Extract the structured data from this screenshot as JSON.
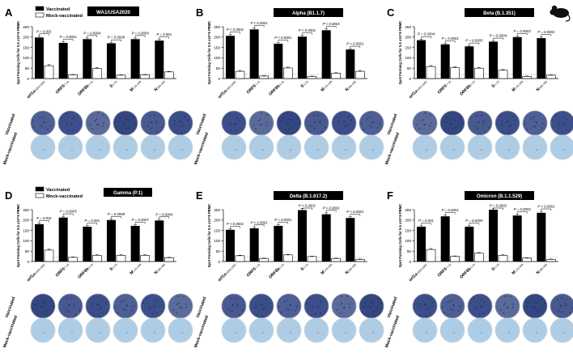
{
  "figure": {
    "legend_vaccinated": "Vaccinated",
    "legend_mock": "Mock-vaccinated",
    "row_vaccinated": "Vaccinated",
    "row_mock": "Mock-vaccinated",
    "colors": {
      "vaccinated_bar": "#000000",
      "mock_bar": "#ffffff",
      "well_dark": "#3d4f8a",
      "well_light": "#aecde4",
      "variant_box": "#000000",
      "mouse": "#111111"
    },
    "mouse_icon": "mouse-silhouette-icon"
  },
  "chart_data": [
    {
      "panel": "A",
      "type": "bar",
      "variant": "WA1/USA2020",
      "ylabel": "Spot Forming Cells for 5.5 x10^6 PBMC",
      "ylim": [
        0,
        250
      ],
      "y_ticks": [
        "0",
        "50",
        "100",
        "150",
        "200",
        "250"
      ],
      "dotted_line": 20,
      "categories": [
        {
          "main": "orf1a",
          "sub": "1053-1062"
        },
        {
          "main": "ORF6",
          "sub": "7-15"
        },
        {
          "main": "ORF8b",
          "sub": "1-15"
        },
        {
          "main": "S",
          "sub": "1-13"
        },
        {
          "main": "M",
          "sub": "176-188"
        },
        {
          "main": "N",
          "sub": "395-403"
        }
      ],
      "series": [
        {
          "name": "Vaccinated",
          "values": [
            198,
            172,
            190,
            170,
            190,
            183
          ]
        },
        {
          "name": "Mock-vaccinated",
          "values": [
            62,
            18,
            48,
            16,
            18,
            32
          ]
        }
      ],
      "pvalues": [
        "P = 0.001",
        "P = 0.0001",
        "P = 0.0004",
        "P = 0.0009",
        "P = 0.0009",
        "P = 0.001"
      ]
    },
    {
      "panel": "B",
      "type": "bar",
      "variant": "Alpha (B1.1.7)",
      "ylabel": "Spot Forming Cells for 5.5 x10^6 PBMC",
      "ylim": [
        0,
        250
      ],
      "y_ticks": [
        "0",
        "50",
        "100",
        "150",
        "200",
        "250"
      ],
      "dotted_line": 20,
      "categories": [
        {
          "main": "orf1a",
          "sub": "1053-1062"
        },
        {
          "main": "ORF6",
          "sub": "7-15"
        },
        {
          "main": "ORF8b",
          "sub": "1-15"
        },
        {
          "main": "S",
          "sub": "1-13"
        },
        {
          "main": "M",
          "sub": "176-188"
        },
        {
          "main": "N",
          "sub": "395-403"
        }
      ],
      "series": [
        {
          "name": "Vaccinated",
          "values": [
            206,
            237,
            168,
            202,
            233,
            140
          ]
        },
        {
          "name": "Mock-vaccinated",
          "values": [
            35,
            12,
            51,
            10,
            26,
            35
          ]
        }
      ],
      "pvalues": [
        "P < 0.0001",
        "P < 0.0001",
        "P < 0.0001",
        "P < 0.0001",
        "P < 0.0001",
        "P < 0.0001"
      ]
    },
    {
      "panel": "C",
      "type": "bar",
      "variant": "Beta (B.1.351)",
      "ylabel": "Spot Forming Cells for 5.5 x10^6 PBMC",
      "ylim": [
        0,
        250
      ],
      "y_ticks": [
        "0",
        "50",
        "100",
        "150",
        "200",
        "250"
      ],
      "dotted_line": 20,
      "categories": [
        {
          "main": "orf1a",
          "sub": "1053-1062"
        },
        {
          "main": "ORF6",
          "sub": "7-15"
        },
        {
          "main": "ORF8b",
          "sub": "1-15"
        },
        {
          "main": "S",
          "sub": "1-13"
        },
        {
          "main": "M",
          "sub": "176-188"
        },
        {
          "main": "N",
          "sub": "395-403"
        }
      ],
      "series": [
        {
          "name": "Vaccinated",
          "values": [
            185,
            165,
            155,
            178,
            200,
            195
          ]
        },
        {
          "name": "Mock-vaccinated",
          "values": [
            58,
            52,
            50,
            40,
            10,
            16
          ]
        }
      ],
      "pvalues": [
        "P = 0.0004",
        "P = 0.0001",
        "P = 0.0005",
        "P = 0.0004",
        "P = 0.0002",
        "P = 0.0002"
      ]
    },
    {
      "panel": "D",
      "type": "bar",
      "variant": "Gamma (P.1)",
      "ylabel": "Spot Forming Cells for 5.5 x10^6 PBMC",
      "ylim": [
        0,
        250
      ],
      "y_ticks": [
        "0",
        "50",
        "100",
        "150",
        "200",
        "250"
      ],
      "dotted_line": 20,
      "categories": [
        {
          "main": "orf1a",
          "sub": "1053-1062"
        },
        {
          "main": "ORF6",
          "sub": "7-15"
        },
        {
          "main": "ORF8b",
          "sub": "1-15"
        },
        {
          "main": "S",
          "sub": "1-13"
        },
        {
          "main": "M",
          "sub": "176-188"
        },
        {
          "main": "N",
          "sub": "395-403"
        }
      ],
      "series": [
        {
          "name": "Vaccinated",
          "values": [
            180,
            212,
            168,
            200,
            172,
            198
          ]
        },
        {
          "name": "Mock-vaccinated",
          "values": [
            55,
            20,
            30,
            30,
            30,
            18
          ]
        }
      ],
      "pvalues": [
        "P = 0.001",
        "P = 0.0005",
        "P = 0.001",
        "P = 0.0009",
        "P = 0.0007",
        "P = 0.0004"
      ]
    },
    {
      "panel": "E",
      "type": "bar",
      "variant": "Delta (B.1.617.2)",
      "ylabel": "Spot Forming Cells for 5.5 x10^6 PBMC",
      "ylim": [
        0,
        250
      ],
      "y_ticks": [
        "0",
        "50",
        "100",
        "150",
        "200",
        "250"
      ],
      "dotted_line": 20,
      "categories": [
        {
          "main": "orf1a",
          "sub": "1053-1062"
        },
        {
          "main": "ORF6",
          "sub": "7-15"
        },
        {
          "main": "ORF8b",
          "sub": "1-15"
        },
        {
          "main": "S",
          "sub": "1-13"
        },
        {
          "main": "M",
          "sub": "176-188"
        },
        {
          "main": "N",
          "sub": "395-403"
        }
      ],
      "series": [
        {
          "name": "Vaccinated",
          "values": [
            153,
            160,
            172,
            248,
            228,
            210
          ]
        },
        {
          "name": "Mock-vaccinated",
          "values": [
            28,
            14,
            32,
            24,
            14,
            10
          ]
        }
      ],
      "pvalues": [
        "P < 0.0001",
        "P < 0.0001",
        "P < 0.0001",
        "P < 0.0001",
        "P < 0.0001",
        "P < 0.0001"
      ]
    },
    {
      "panel": "F",
      "type": "bar",
      "variant": "Omicron (B.1.1.529)",
      "ylabel": "Spot Forming Cells for 5.5 x10^6 PBMC",
      "ylim": [
        0,
        250
      ],
      "y_ticks": [
        "0",
        "50",
        "100",
        "150",
        "200",
        "250"
      ],
      "dotted_line": 20,
      "categories": [
        {
          "main": "orf1a",
          "sub": "1053-1062"
        },
        {
          "main": "ORF6",
          "sub": "7-15"
        },
        {
          "main": "ORF8b",
          "sub": "1-15"
        },
        {
          "main": "S",
          "sub": "1-13"
        },
        {
          "main": "M",
          "sub": "176-188"
        },
        {
          "main": "N",
          "sub": "395-403"
        }
      ],
      "series": [
        {
          "name": "Vaccinated",
          "values": [
            168,
            218,
            168,
            250,
            222,
            235
          ]
        },
        {
          "name": "Mock-vaccinated",
          "values": [
            58,
            25,
            40,
            30,
            16,
            10
          ]
        }
      ],
      "pvalues": [
        "P = 0.001",
        "P = 0.0001",
        "P = 0.0009",
        "P = 0.0002",
        "P = 0.0002",
        "P < 0.0001"
      ]
    }
  ]
}
